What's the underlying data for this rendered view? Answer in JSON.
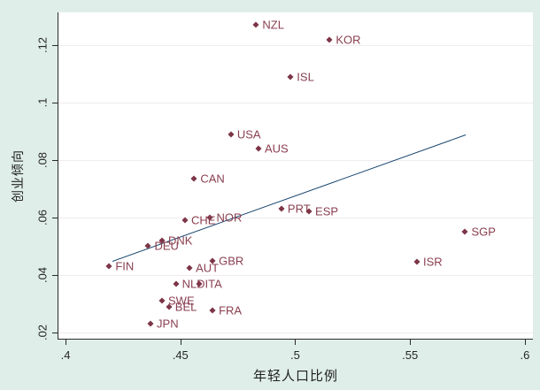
{
  "figure": {
    "background_color": "#dfeee9",
    "plot_background_color": "#ffffff",
    "axis_color": "#2a2a2a",
    "grid_color": "#f0ebee",
    "marker_color": "#7d3547",
    "point_label_color": "#8a4050",
    "fit_line_color": "#1a476f"
  },
  "chart_data": {
    "type": "scatter",
    "title": "",
    "xlabel": "年轻人口比例",
    "ylabel": "创业倾向",
    "xlim": [
      0.3969,
      0.6035
    ],
    "ylim": [
      0.0178,
      0.1314
    ],
    "x_ticks": [
      ".4",
      ".45",
      ".5",
      ".55",
      ".6"
    ],
    "x_tick_values": [
      0.4,
      0.45,
      0.5,
      0.55,
      0.6
    ],
    "y_ticks": [
      ".02",
      ".04",
      ".06",
      ".08",
      ".1",
      ".12"
    ],
    "y_tick_values": [
      0.02,
      0.04,
      0.06,
      0.08,
      0.1,
      0.12
    ],
    "grid": "horizontal",
    "legend": "none",
    "points": [
      {
        "label": "NZL",
        "x": 0.483,
        "y": 0.127
      },
      {
        "label": "KOR",
        "x": 0.515,
        "y": 0.122
      },
      {
        "label": "ISL",
        "x": 0.498,
        "y": 0.109
      },
      {
        "label": "USA",
        "x": 0.472,
        "y": 0.089
      },
      {
        "label": "AUS",
        "x": 0.484,
        "y": 0.084
      },
      {
        "label": "CAN",
        "x": 0.456,
        "y": 0.0735
      },
      {
        "label": "PRT",
        "x": 0.494,
        "y": 0.063
      },
      {
        "label": "ESP",
        "x": 0.506,
        "y": 0.062
      },
      {
        "label": "NOR",
        "x": 0.463,
        "y": 0.06
      },
      {
        "label": "CHE",
        "x": 0.452,
        "y": 0.059
      },
      {
        "label": "SGP",
        "x": 0.574,
        "y": 0.055
      },
      {
        "label": "DNK",
        "x": 0.442,
        "y": 0.052
      },
      {
        "label": "DEU",
        "x": 0.436,
        "y": 0.05
      },
      {
        "label": "ISR",
        "x": 0.553,
        "y": 0.0445
      },
      {
        "label": "GBR",
        "x": 0.464,
        "y": 0.0448
      },
      {
        "label": "FIN",
        "x": 0.419,
        "y": 0.043
      },
      {
        "label": "AUT",
        "x": 0.454,
        "y": 0.0425
      },
      {
        "label": "NLD",
        "x": 0.448,
        "y": 0.037
      },
      {
        "label": "ITA",
        "x": 0.458,
        "y": 0.037
      },
      {
        "label": "SWE",
        "x": 0.442,
        "y": 0.031
      },
      {
        "label": "BEL",
        "x": 0.445,
        "y": 0.029
      },
      {
        "label": "FRA",
        "x": 0.464,
        "y": 0.0275
      },
      {
        "label": "JPN",
        "x": 0.437,
        "y": 0.023
      }
    ],
    "fit_line": {
      "x1": 0.4204,
      "y1": 0.0449,
      "x2": 0.5742,
      "y2": 0.0889
    }
  }
}
